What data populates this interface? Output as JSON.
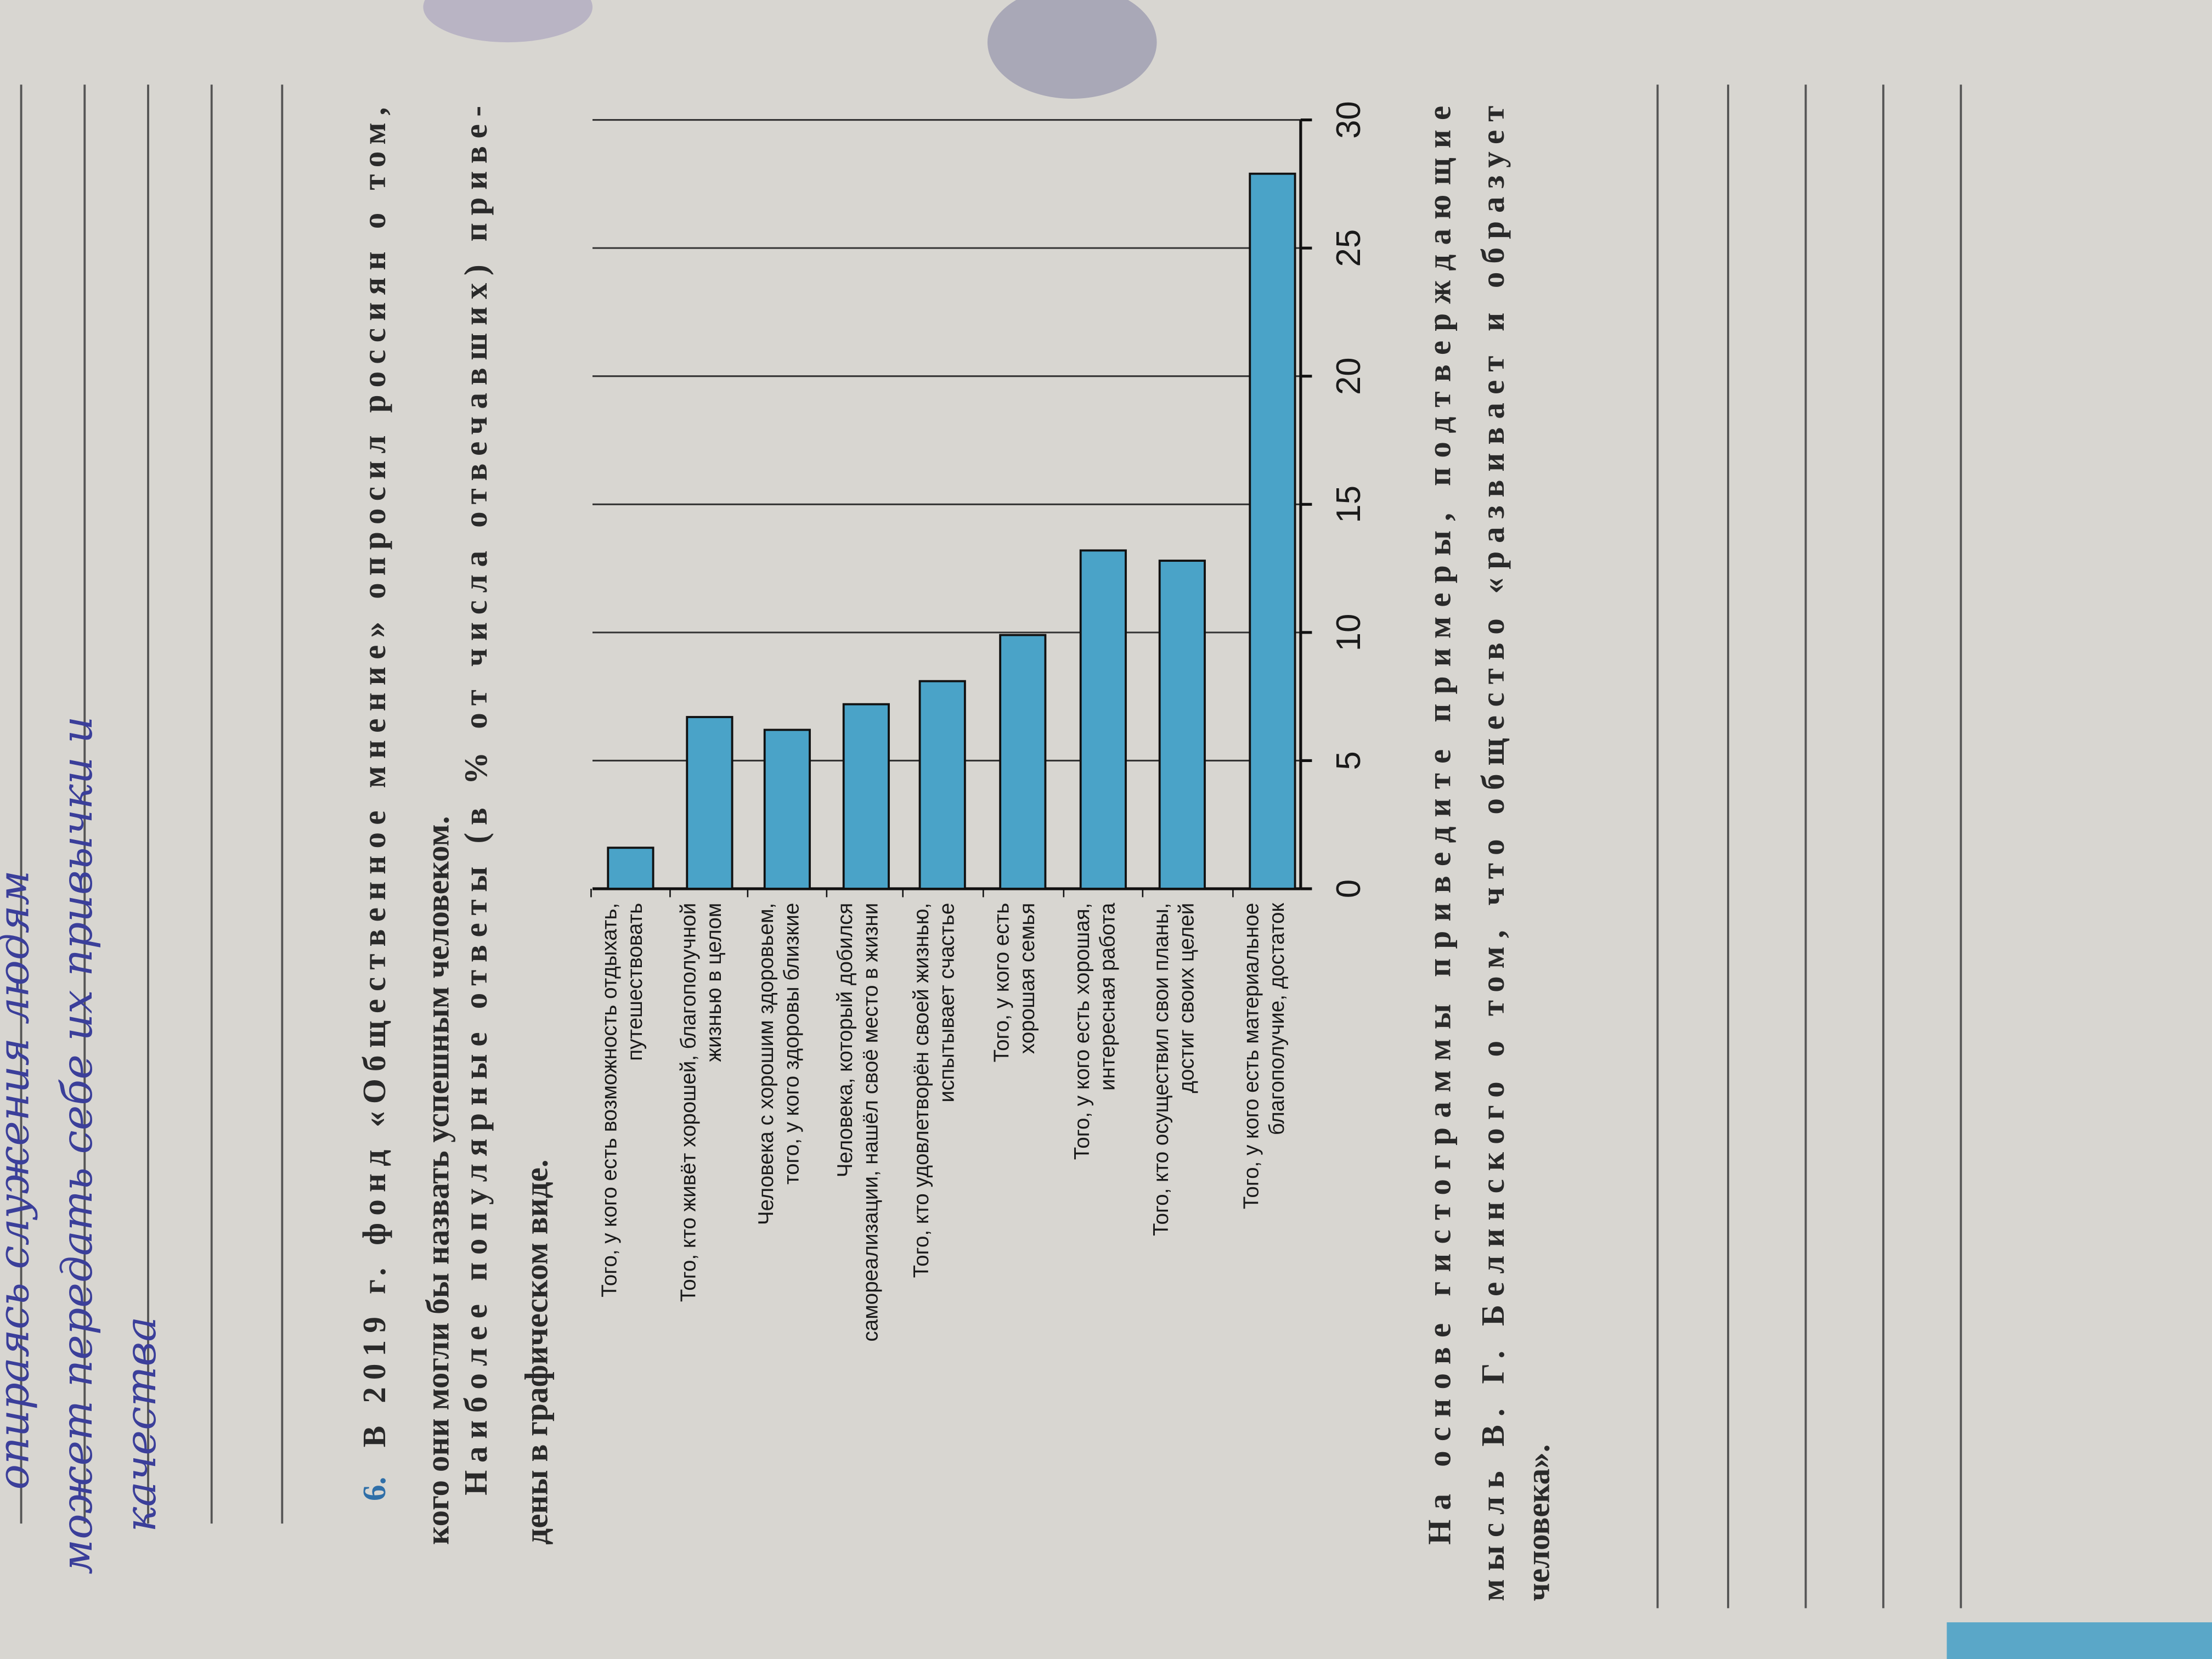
{
  "handwriting": [
    "опираясь служения людям",
    "может передать себе их привычки и",
    "качества"
  ],
  "question": {
    "number": "6.",
    "lines": [
      "В 2019 г. фонд «Общественное мнение» опросил россиян о том,",
      "кого они могли бы назвать успешным человеком.",
      "Наиболее популярные ответы (в % от числа отвечавших) приве-",
      "дены в графическом виде."
    ]
  },
  "chart_data": {
    "type": "bar",
    "orientation": "horizontal",
    "color": "#4aa3c8",
    "categories": [
      [
        "Того, у кого есть возможность отдыхать,",
        "путешествовать"
      ],
      [
        "Того, кто живёт хорошей, благополучной",
        "жизнью в целом"
      ],
      [
        "Человека с хорошим здоровьем,",
        "того, у кого здоровы близкие"
      ],
      [
        "Человека, который добился",
        "самореализации, нашёл своё место в жизни"
      ],
      [
        "Того, кто удовлетворён своей жизнью,",
        "испытывает счастье"
      ],
      [
        "Того, у кого есть",
        "хорошая семья"
      ],
      [
        "Того, у кого есть хорошая,",
        "интересная работа"
      ],
      [
        "Того, кто осуществил свои планы,",
        "достиг своих целей"
      ],
      [
        "Того, у кого есть материальное",
        "благополучие, достаток"
      ]
    ],
    "values": [
      1.6,
      6.7,
      6.2,
      7.2,
      8.1,
      9.9,
      13.2,
      12.8,
      27.9
    ],
    "xlim": [
      0,
      30
    ],
    "xticks": [
      0,
      5,
      10,
      15,
      20,
      25,
      30
    ],
    "grid": true
  },
  "task": {
    "lines": [
      "На основе гистограммы приведите примеры, подтверждающие",
      "мысль В. Г. Белинского о том, что общество «развивает и образует",
      "человека»."
    ]
  }
}
